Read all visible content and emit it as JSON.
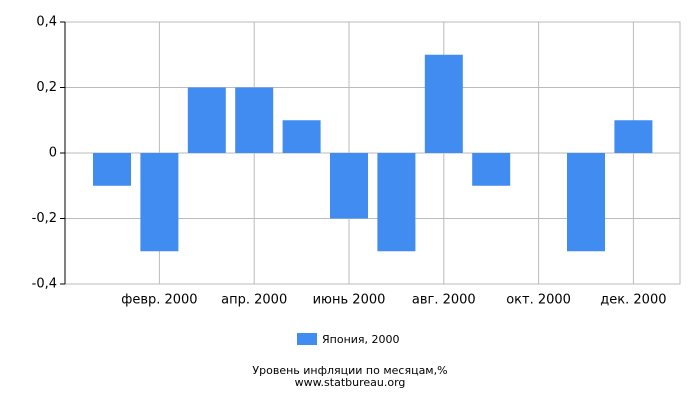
{
  "chart_data": {
    "type": "bar",
    "categories": [
      null,
      "февр. 2000",
      null,
      "апр. 2000",
      null,
      "июнь 2000",
      null,
      "авг. 2000",
      null,
      "окт. 2000",
      null,
      "дек. 2000"
    ],
    "series": [
      {
        "name": "Япония, 2000",
        "color": "#418cf0",
        "values": [
          -0.1,
          -0.3,
          0.2,
          0.2,
          0.1,
          -0.2,
          -0.3,
          0.3,
          -0.1,
          0,
          -0.3,
          0.1
        ]
      }
    ],
    "ylim": [
      -0.4,
      0.4
    ],
    "yticks": [
      {
        "value": -0.4,
        "label": "-0,4"
      },
      {
        "value": -0.2,
        "label": "-0,2"
      },
      0,
      {
        "value": 0.2,
        "label": "0,2"
      },
      {
        "value": 0.4,
        "label": "0,4"
      }
    ],
    "grid": true,
    "title": "Уровень инфляции по месяцам,%",
    "subtitle": "www.statbureau.org"
  }
}
